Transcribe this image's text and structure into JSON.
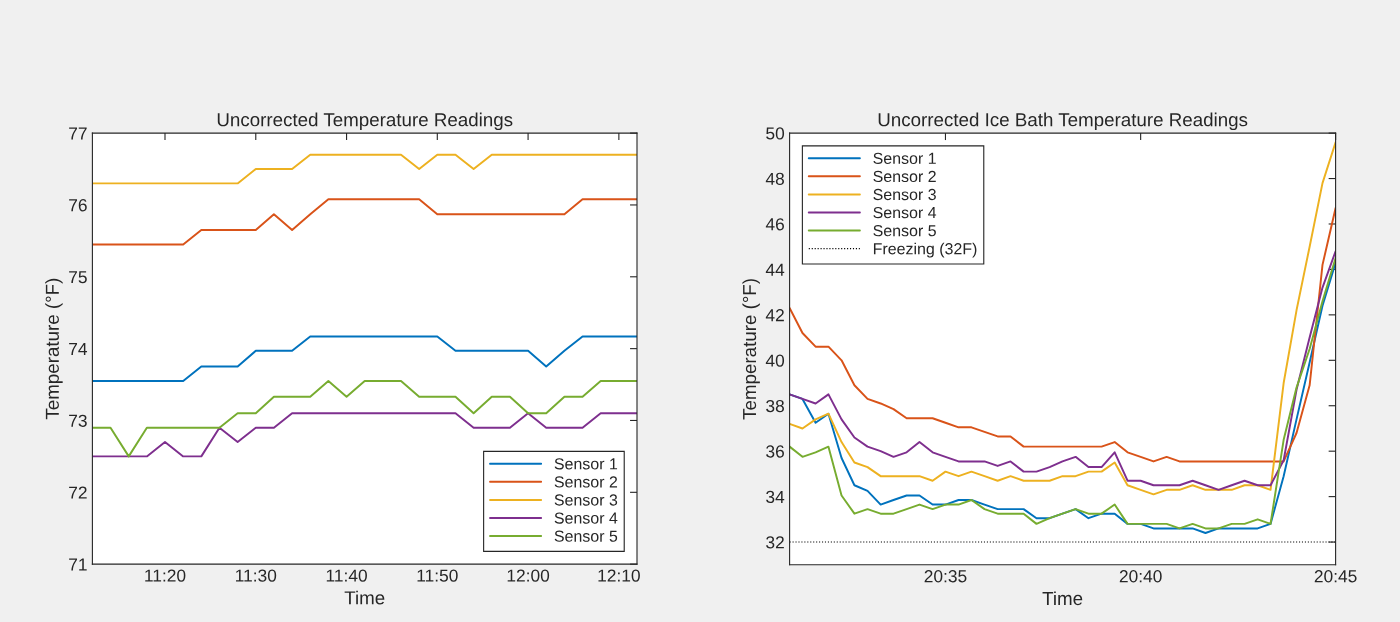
{
  "chart_data": [
    {
      "type": "line",
      "title": "Uncorrected Temperature Readings",
      "xlabel": "Time",
      "ylabel": "Temperature (°F)",
      "legend": "bottom right",
      "x": [
        11.2,
        11.2333,
        11.2667,
        11.3,
        11.3333,
        11.3667,
        11.4,
        11.4333,
        11.4667,
        11.5,
        11.5333,
        11.5667,
        11.6,
        11.6333,
        11.6667,
        11.7,
        11.7333,
        11.7667,
        11.8,
        11.8333,
        11.8667,
        11.9,
        11.9333,
        11.9667,
        12.0,
        12.0333,
        12.0667,
        12.1,
        12.1333,
        12.1667,
        12.2
      ],
      "xlim": [
        11.2,
        12.2
      ],
      "xticks": [
        {
          "value": 11.3333,
          "label": "11:20"
        },
        {
          "value": 11.5,
          "label": "11:30"
        },
        {
          "value": 11.6667,
          "label": "11:40"
        },
        {
          "value": 11.8333,
          "label": "11:50"
        },
        {
          "value": 12.0,
          "label": "12:00"
        },
        {
          "value": 12.1667,
          "label": "12:10"
        }
      ],
      "ylim": [
        71,
        77
      ],
      "yticks": [
        71,
        72,
        73,
        74,
        75,
        76,
        77
      ],
      "series": [
        {
          "name": "Sensor 1",
          "color": "#0072bd",
          "values": [
            73.55,
            73.55,
            73.55,
            73.55,
            73.55,
            73.55,
            73.75,
            73.75,
            73.75,
            73.97,
            73.97,
            73.97,
            74.17,
            74.17,
            74.17,
            74.17,
            74.17,
            74.17,
            74.17,
            74.17,
            73.97,
            73.97,
            73.97,
            73.97,
            73.97,
            73.75,
            73.97,
            74.17,
            74.17,
            74.17,
            74.17
          ]
        },
        {
          "name": "Sensor 2",
          "color": "#d95319",
          "values": [
            75.45,
            75.45,
            75.45,
            75.45,
            75.45,
            75.45,
            75.65,
            75.65,
            75.65,
            75.65,
            75.87,
            75.65,
            75.87,
            76.08,
            76.08,
            76.08,
            76.08,
            76.08,
            76.08,
            75.87,
            75.87,
            75.87,
            75.87,
            75.87,
            75.87,
            75.87,
            75.87,
            76.08,
            76.08,
            76.08,
            76.08
          ]
        },
        {
          "name": "Sensor 3",
          "color": "#edb120",
          "values": [
            76.3,
            76.3,
            76.3,
            76.3,
            76.3,
            76.3,
            76.3,
            76.3,
            76.3,
            76.5,
            76.5,
            76.5,
            76.7,
            76.7,
            76.7,
            76.7,
            76.7,
            76.7,
            76.5,
            76.7,
            76.7,
            76.5,
            76.7,
            76.7,
            76.7,
            76.7,
            76.7,
            76.7,
            76.7,
            76.7,
            76.7
          ]
        },
        {
          "name": "Sensor 4",
          "color": "#7e2f8e",
          "values": [
            72.5,
            72.5,
            72.5,
            72.5,
            72.7,
            72.5,
            72.5,
            72.9,
            72.7,
            72.9,
            72.9,
            73.1,
            73.1,
            73.1,
            73.1,
            73.1,
            73.1,
            73.1,
            73.1,
            73.1,
            73.1,
            72.9,
            72.9,
            72.9,
            73.1,
            72.9,
            72.9,
            72.9,
            73.1,
            73.1,
            73.1
          ]
        },
        {
          "name": "Sensor 5",
          "color": "#77ac30",
          "values": [
            72.9,
            72.9,
            72.5,
            72.9,
            72.9,
            72.9,
            72.9,
            72.9,
            73.1,
            73.1,
            73.33,
            73.33,
            73.33,
            73.55,
            73.33,
            73.55,
            73.55,
            73.55,
            73.33,
            73.33,
            73.33,
            73.1,
            73.33,
            73.33,
            73.1,
            73.1,
            73.33,
            73.33,
            73.55,
            73.55,
            73.55
          ]
        }
      ]
    },
    {
      "type": "line",
      "title": "Uncorrected Ice Bath Temperature Readings",
      "xlabel": "Time",
      "ylabel": "Temperature (°F)",
      "legend": "top left",
      "x": [
        20.5167,
        20.5222,
        20.5278,
        20.5333,
        20.5389,
        20.5444,
        20.55,
        20.5556,
        20.5611,
        20.5667,
        20.5722,
        20.5778,
        20.5833,
        20.5889,
        20.5944,
        20.6,
        20.6056,
        20.6111,
        20.6167,
        20.6222,
        20.6278,
        20.6333,
        20.6389,
        20.6444,
        20.65,
        20.6556,
        20.6611,
        20.6667,
        20.6722,
        20.6778,
        20.6833,
        20.6889,
        20.6944,
        20.7,
        20.7056,
        20.7111,
        20.7167,
        20.7222,
        20.7278,
        20.7333,
        20.7389,
        20.7444,
        20.75
      ],
      "xlim": [
        20.5167,
        20.75
      ],
      "xticks": [
        {
          "value": 20.5833,
          "label": "20:35"
        },
        {
          "value": 20.6667,
          "label": "20:40"
        },
        {
          "value": 20.75,
          "label": "20:45"
        }
      ],
      "ylim": [
        31,
        50
      ],
      "yticks": [
        32,
        34,
        36,
        38,
        40,
        42,
        44,
        46,
        48,
        50
      ],
      "series": [
        {
          "name": "Sensor 1",
          "color": "#0072bd",
          "values": [
            38.5,
            38.3,
            37.25,
            37.65,
            35.7,
            34.5,
            34.25,
            33.65,
            33.85,
            34.05,
            34.05,
            33.65,
            33.65,
            33.85,
            33.85,
            33.65,
            33.45,
            33.45,
            33.45,
            33.05,
            33.05,
            33.25,
            33.45,
            33.05,
            33.25,
            33.25,
            32.8,
            32.8,
            32.6,
            32.6,
            32.6,
            32.6,
            32.4,
            32.6,
            32.6,
            32.6,
            32.6,
            32.8,
            34.9,
            37.4,
            39.9,
            42.4,
            44.3
          ]
        },
        {
          "name": "Sensor 2",
          "color": "#d95319",
          "values": [
            42.3,
            41.2,
            40.6,
            40.6,
            40.0,
            38.9,
            38.3,
            38.1,
            37.85,
            37.45,
            37.45,
            37.45,
            37.25,
            37.05,
            37.05,
            36.85,
            36.65,
            36.65,
            36.2,
            36.2,
            36.2,
            36.2,
            36.2,
            36.2,
            36.2,
            36.4,
            35.95,
            35.75,
            35.55,
            35.75,
            35.55,
            35.55,
            35.55,
            35.55,
            35.55,
            35.55,
            35.55,
            35.55,
            35.55,
            36.8,
            38.9,
            44.2,
            46.7
          ]
        },
        {
          "name": "Sensor 3",
          "color": "#edb120",
          "values": [
            37.2,
            37.0,
            37.4,
            37.65,
            36.4,
            35.5,
            35.3,
            34.9,
            34.9,
            34.9,
            34.9,
            34.7,
            35.1,
            34.9,
            35.1,
            34.9,
            34.7,
            34.9,
            34.7,
            34.7,
            34.7,
            34.9,
            34.9,
            35.1,
            35.1,
            35.5,
            34.5,
            34.3,
            34.1,
            34.3,
            34.3,
            34.5,
            34.3,
            34.3,
            34.3,
            34.5,
            34.5,
            34.3,
            39.0,
            42.2,
            45.0,
            47.8,
            49.6
          ]
        },
        {
          "name": "Sensor 4",
          "color": "#7e2f8e",
          "values": [
            38.5,
            38.3,
            38.1,
            38.5,
            37.4,
            36.6,
            36.2,
            36.0,
            35.75,
            35.95,
            36.4,
            35.95,
            35.75,
            35.55,
            35.55,
            35.55,
            35.35,
            35.55,
            35.1,
            35.1,
            35.3,
            35.55,
            35.75,
            35.3,
            35.3,
            35.95,
            34.7,
            34.7,
            34.5,
            34.5,
            34.5,
            34.7,
            34.5,
            34.3,
            34.5,
            34.7,
            34.5,
            34.5,
            35.6,
            38.7,
            41.0,
            43.2,
            44.8
          ]
        },
        {
          "name": "Sensor 5",
          "color": "#77ac30",
          "values": [
            36.2,
            35.75,
            35.95,
            36.2,
            34.05,
            33.25,
            33.45,
            33.25,
            33.25,
            33.45,
            33.65,
            33.45,
            33.65,
            33.65,
            33.85,
            33.45,
            33.25,
            33.25,
            33.25,
            32.8,
            33.05,
            33.25,
            33.45,
            33.25,
            33.25,
            33.65,
            32.8,
            32.8,
            32.8,
            32.8,
            32.6,
            32.8,
            32.6,
            32.6,
            32.8,
            32.8,
            33.0,
            32.8,
            36.5,
            38.8,
            40.5,
            42.6,
            44.5
          ]
        }
      ],
      "ref_lines": [
        {
          "axis": "y",
          "value": 32,
          "label": "Freezing (32F)",
          "color": "#000000",
          "line_style": "dotted"
        }
      ]
    }
  ]
}
